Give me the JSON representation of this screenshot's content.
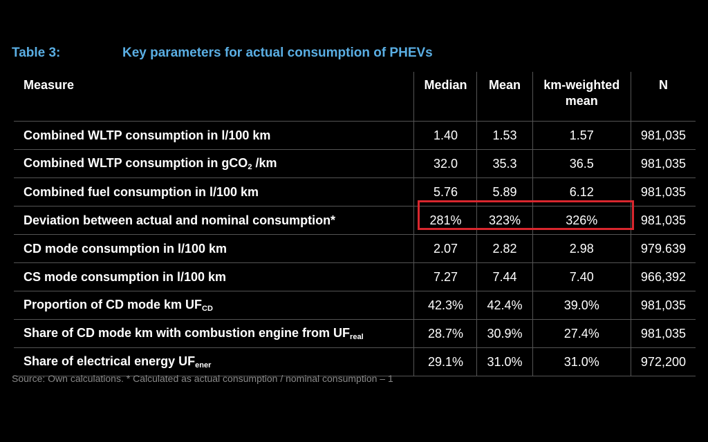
{
  "title": {
    "label": "Table 3:",
    "text": "Key parameters for actual consumption of PHEVs"
  },
  "columns": [
    "Measure",
    "Median",
    "Mean",
    "km-weighted mean",
    "N"
  ],
  "rows": [
    {
      "label": "Combined WLTP consumption in l/100 km",
      "sub": "",
      "suffix": "",
      "values": [
        "1.40",
        "1.53",
        "1.57",
        "981,035"
      ]
    },
    {
      "label": "Combined WLTP consumption in gCO",
      "sub": "2",
      "suffix": " /km",
      "values": [
        "32.0",
        "35.3",
        "36.5",
        "981,035"
      ]
    },
    {
      "label": "Combined fuel consumption in l/100 km",
      "sub": "",
      "suffix": "",
      "values": [
        "5.76",
        "5.89",
        "6.12",
        "981,035"
      ]
    },
    {
      "label": "Deviation between actual and nominal consumption*",
      "sub": "",
      "suffix": "",
      "values": [
        "281%",
        "323%",
        "326%",
        "981,035"
      ],
      "highlighted": true
    },
    {
      "label": "CD mode consumption in l/100 km",
      "sub": "",
      "suffix": "",
      "values": [
        "2.07",
        "2.82",
        "2.98",
        "979.639"
      ]
    },
    {
      "label": "CS mode consumption in l/100 km",
      "sub": "",
      "suffix": "",
      "values": [
        "7.27",
        "7.44",
        "7.40",
        "966,392"
      ]
    },
    {
      "label": "Proportion of CD mode km UF",
      "sub": "CD",
      "suffix": "",
      "values": [
        "42.3%",
        "42.4%",
        "39.0%",
        "981,035"
      ]
    },
    {
      "label": "Share of CD mode km with combustion engine from UF",
      "sub": "real",
      "suffix": "",
      "values": [
        "28.7%",
        "30.9%",
        "27.4%",
        "981,035"
      ]
    },
    {
      "label": "Share of electrical energy UF",
      "sub": "ener",
      "suffix": "",
      "values": [
        "29.1%",
        "31.0%",
        "31.0%",
        "972,200"
      ]
    }
  ],
  "source": "Source: Own calculations. * Calculated as actual consumption / nominal consumption – 1",
  "colors": {
    "title": "#5aaee3",
    "highlight": "#d9272e"
  }
}
